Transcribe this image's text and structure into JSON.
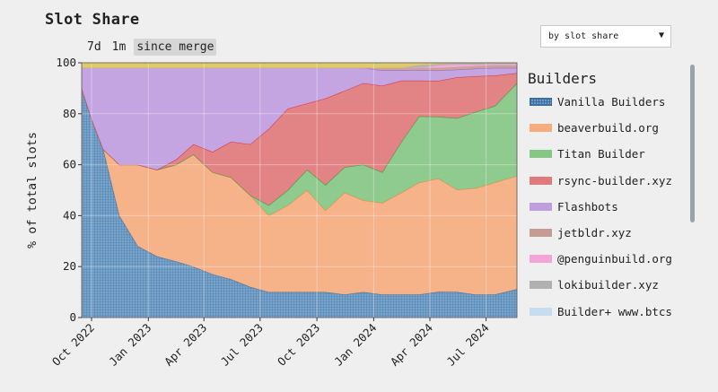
{
  "title": "Slot Share",
  "ranges": [
    "7d",
    "1m",
    "since merge"
  ],
  "active_range": "since merge",
  "dropdown": {
    "value": "by slot share"
  },
  "legend_title": "Builders",
  "chart_data": {
    "type": "area",
    "stacked": true,
    "ylabel": "% of total slots",
    "ylim": [
      0,
      100
    ],
    "yticks": [
      0,
      20,
      40,
      60,
      80,
      100
    ],
    "xlim": [
      "2022-09-15",
      "2024-08-20"
    ],
    "xticks": [
      "Oct 2022",
      "Jan 2023",
      "Apr 2023",
      "Jul 2023",
      "Oct 2023",
      "Jan 2024",
      "Apr 2024",
      "Jul 2024"
    ],
    "grid": true,
    "legend_position": "right",
    "x": [
      "2022-09-15",
      "2022-10-01",
      "2022-10-20",
      "2022-11-15",
      "2022-12-15",
      "2023-01-15",
      "2023-02-15",
      "2023-03-15",
      "2023-04-15",
      "2023-05-15",
      "2023-06-15",
      "2023-07-15",
      "2023-08-15",
      "2023-09-15",
      "2023-10-15",
      "2023-11-15",
      "2023-12-15",
      "2024-01-15",
      "2024-02-15",
      "2024-03-15",
      "2024-04-15",
      "2024-05-15",
      "2024-06-15",
      "2024-07-15",
      "2024-08-20"
    ],
    "series": [
      {
        "name": "Vanilla Builders",
        "color": "#6b9bc7",
        "values": [
          90,
          78,
          66,
          40,
          28,
          24,
          22,
          20,
          17,
          15,
          12,
          10,
          10,
          10,
          10,
          9,
          10,
          9,
          9,
          9,
          10,
          10,
          9,
          9,
          11
        ]
      },
      {
        "name": "beaverbuild.org",
        "color": "#f5ad80",
        "values": [
          0,
          0,
          0,
          20,
          32,
          34,
          38,
          44,
          40,
          40,
          36,
          30,
          34,
          40,
          32,
          40,
          36,
          36,
          40,
          44,
          44,
          40,
          42,
          44,
          44
        ]
      },
      {
        "name": "Titan Builder",
        "color": "#86c786",
        "values": [
          0,
          0,
          0,
          0,
          0,
          0,
          0,
          0,
          0,
          0,
          0,
          4,
          6,
          8,
          10,
          10,
          14,
          12,
          20,
          26,
          24,
          28,
          30,
          30,
          36
        ]
      },
      {
        "name": "rsync-builder.xyz",
        "color": "#e07a7c",
        "values": [
          0,
          0,
          0,
          0,
          0,
          0,
          2,
          4,
          8,
          14,
          20,
          30,
          32,
          26,
          34,
          30,
          32,
          34,
          24,
          14,
          14,
          16,
          14,
          12,
          4
        ]
      },
      {
        "name": "Flashbots",
        "color": "#bf9ee0",
        "values": [
          8,
          20,
          32,
          38,
          38,
          40,
          36,
          30,
          33,
          29,
          30,
          24,
          16,
          14,
          12,
          9,
          6,
          6,
          4,
          4,
          4,
          3,
          3,
          3,
          2
        ]
      },
      {
        "name": "jetbldr.xyz",
        "color": "#c49c94",
        "values": [
          0,
          0,
          0,
          0,
          0,
          0,
          0,
          0,
          0,
          0,
          0,
          0,
          0,
          0,
          0,
          0,
          0,
          1,
          1,
          1,
          1,
          1,
          1,
          1,
          1
        ]
      },
      {
        "name": "@penguinbuild.org",
        "color": "#f2a6d8",
        "values": [
          0,
          0,
          0,
          0,
          0,
          0,
          0,
          0,
          0,
          0,
          0,
          0,
          0,
          0,
          0,
          0,
          0,
          0,
          0,
          0,
          1,
          1,
          0.5,
          0.5,
          0.5
        ]
      },
      {
        "name": "lokibuilder.xyz",
        "color": "#b0b0b0",
        "values": [
          0,
          0,
          0,
          0,
          0,
          0,
          0,
          0,
          0,
          0,
          0,
          0,
          0,
          0,
          0,
          0,
          0,
          0,
          0,
          1,
          0.5,
          0.5,
          0.5,
          0.3,
          0.3
        ]
      },
      {
        "name": "Builder+ www.btcs",
        "color": "#c6dcef",
        "values": [
          0,
          0,
          0,
          0,
          0,
          0,
          0,
          0,
          0,
          0,
          0,
          0,
          0,
          0,
          0,
          0,
          0,
          0,
          0,
          0,
          0,
          0,
          0,
          0,
          0
        ]
      },
      {
        "name": "",
        "color": "#dcc660",
        "values": [
          2,
          2,
          2,
          2,
          2,
          2,
          2,
          2,
          2,
          2,
          2,
          2,
          2,
          2,
          2,
          2,
          2,
          2,
          2,
          1,
          0.5,
          0.2,
          0.3,
          0.2,
          0.2
        ]
      }
    ]
  }
}
